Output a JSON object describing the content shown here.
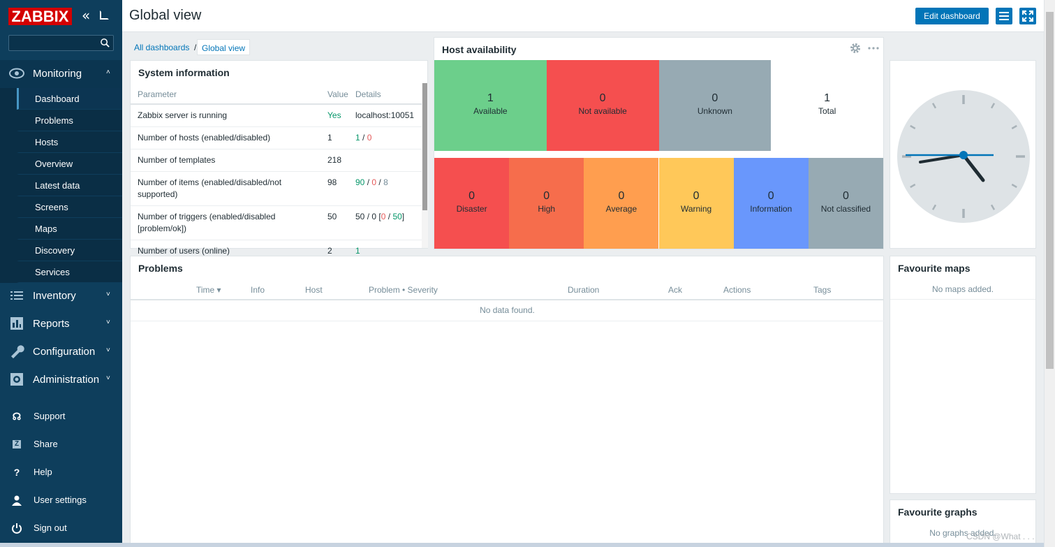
{
  "logo": "ZABBIX",
  "header": {
    "title": "Global view",
    "edit_button": "Edit dashboard"
  },
  "breadcrumbs": {
    "all": "All dashboards",
    "sep": "/",
    "current": "Global view"
  },
  "sidebar": {
    "monitoring": {
      "label": "Monitoring",
      "items": [
        "Dashboard",
        "Problems",
        "Hosts",
        "Overview",
        "Latest data",
        "Screens",
        "Maps",
        "Discovery",
        "Services"
      ]
    },
    "inventory": "Inventory",
    "reports": "Reports",
    "configuration": "Configuration",
    "administration": "Administration",
    "support": "Support",
    "share": "Share",
    "help": "Help",
    "user_settings": "User settings",
    "sign_out": "Sign out"
  },
  "sysinfo": {
    "title": "System information",
    "columns": [
      "Parameter",
      "Value",
      "Details"
    ],
    "rows": [
      {
        "param": "Zabbix server is running",
        "value": "Yes",
        "details": "localhost:10051"
      },
      {
        "param": "Number of hosts (enabled/disabled)",
        "value": "1",
        "d1": "1",
        "d2": "0"
      },
      {
        "param": "Number of templates",
        "value": "218"
      },
      {
        "param": "Number of items (enabled/disabled/not supported)",
        "value": "98",
        "d1": "90",
        "d2": "0",
        "d3": "8"
      },
      {
        "param": "Number of triggers (enabled/disabled [problem/ok])",
        "value": "50",
        "d1": "50",
        "d2": "0",
        "d3": "0",
        "d4": "50"
      },
      {
        "param": "Number of users (online)",
        "value": "2",
        "d1": "1"
      }
    ]
  },
  "host_availability": {
    "title": "Host availability",
    "cells": [
      {
        "num": "1",
        "label": "Available",
        "color": "#6ccf8b"
      },
      {
        "num": "0",
        "label": "Not available",
        "color": "#f54f4f"
      },
      {
        "num": "0",
        "label": "Unknown",
        "color": "#97aab3"
      },
      {
        "num": "1",
        "label": "Total",
        "color": "#ffffff"
      }
    ]
  },
  "severity": {
    "cells": [
      {
        "num": "0",
        "label": "Disaster",
        "color": "#f54f4f"
      },
      {
        "num": "0",
        "label": "High",
        "color": "#f66d4c"
      },
      {
        "num": "0",
        "label": "Average",
        "color": "#ff9e4f"
      },
      {
        "num": "0",
        "label": "Warning",
        "color": "#ffc859"
      },
      {
        "num": "0",
        "label": "Information",
        "color": "#6997fc"
      },
      {
        "num": "0",
        "label": "Not classified",
        "color": "#97aab3"
      }
    ]
  },
  "problems": {
    "title": "Problems",
    "columns": [
      "Time ▾",
      "Info",
      "Host",
      "Problem • Severity",
      "Duration",
      "Ack",
      "Actions",
      "Tags"
    ],
    "empty": "No data found."
  },
  "fav_maps": {
    "title": "Favourite maps",
    "empty": "No maps added."
  },
  "fav_graphs": {
    "title": "Favourite graphs",
    "empty": "No graphs added."
  },
  "watermark": "CSDN @What . . ."
}
